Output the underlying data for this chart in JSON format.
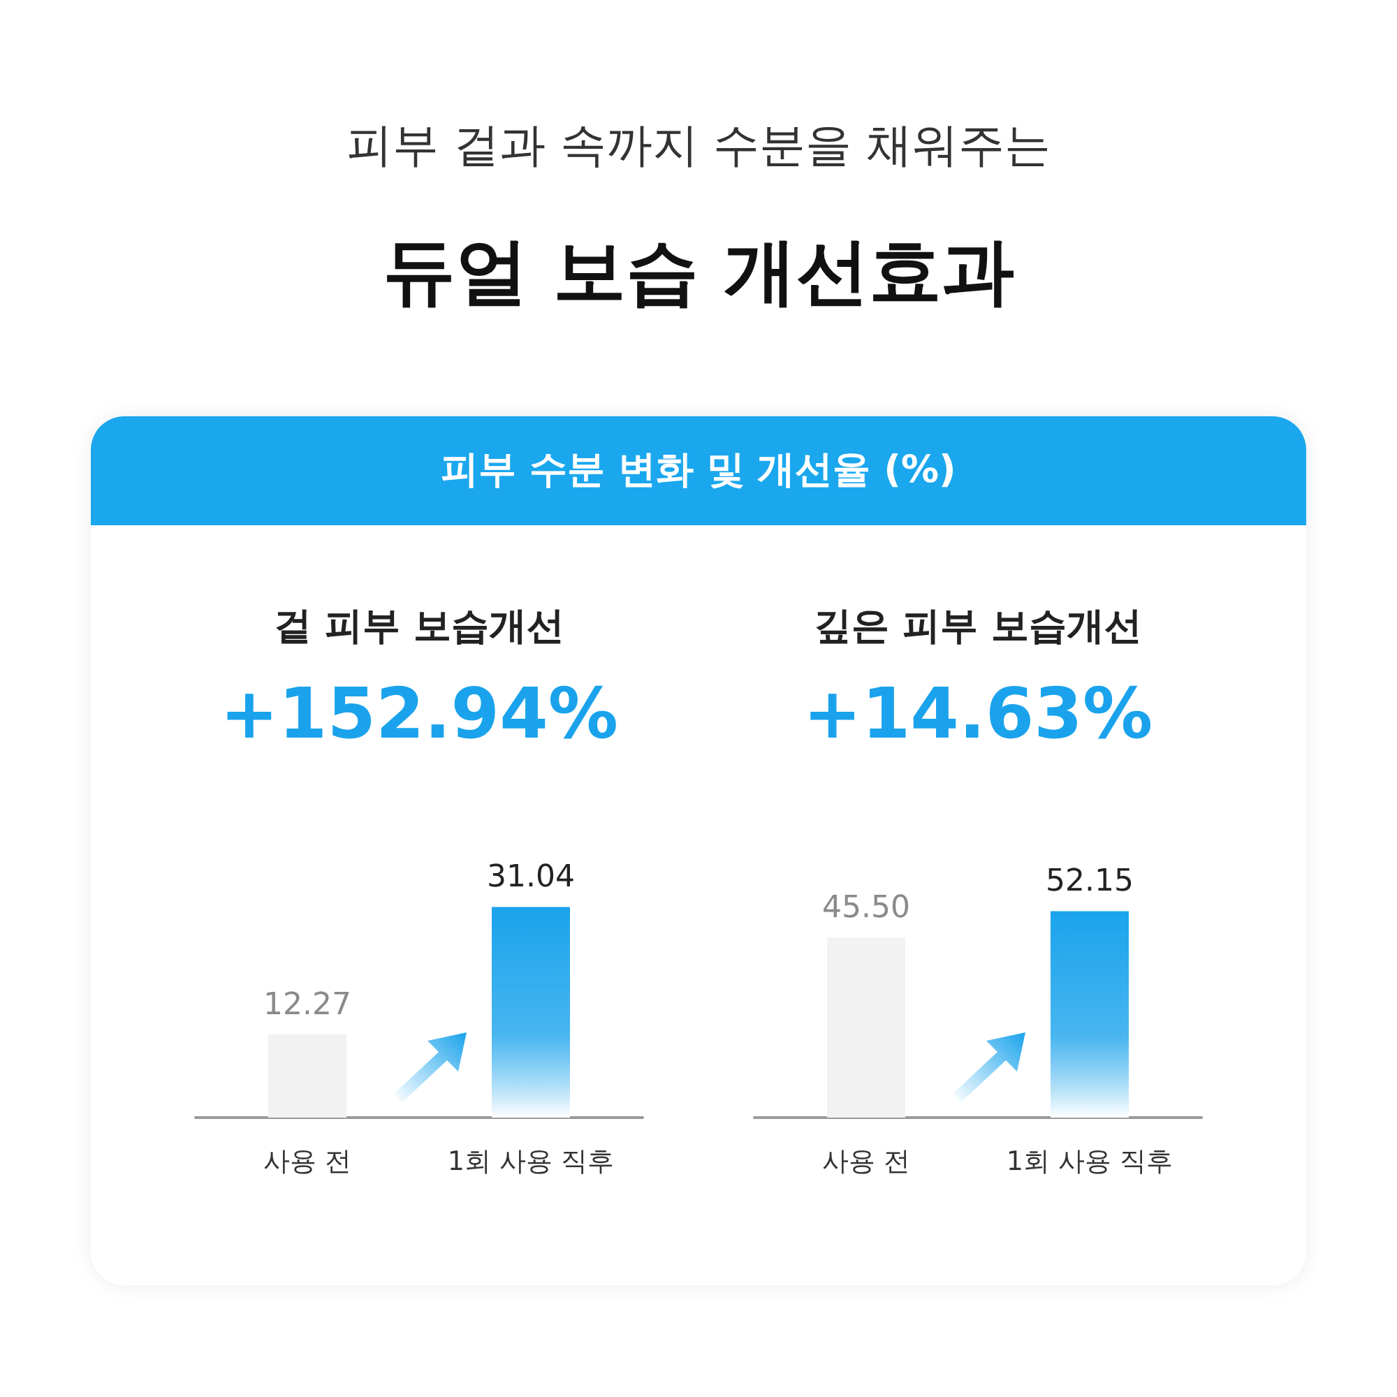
{
  "chart_data": [
    {
      "type": "bar",
      "title": "겉 피부 보습개선",
      "subtitle": "+152.94%",
      "annotations": [
        "피부 겉과 속까지 수분을 채워주는",
        "듀얼 보습 개선효과",
        "피부 수분 변화 및 개선율 (%)"
      ],
      "categories": [
        "사용 전",
        "1회 사용 직후"
      ],
      "values": [
        12.27,
        31.04
      ],
      "colors": [
        "#f2f2f2",
        "#1aa3ec"
      ],
      "value_labels": [
        "12.27",
        "31.04"
      ]
    },
    {
      "type": "bar",
      "title": "깊은 피부 보습개선",
      "subtitle": "+14.63%",
      "categories": [
        "사용 전",
        "1회 사용 직후"
      ],
      "values": [
        45.5,
        52.15
      ],
      "colors": [
        "#f2f2f2",
        "#1aa3ec"
      ],
      "value_labels": [
        "45.50",
        "52.15"
      ]
    }
  ]
}
